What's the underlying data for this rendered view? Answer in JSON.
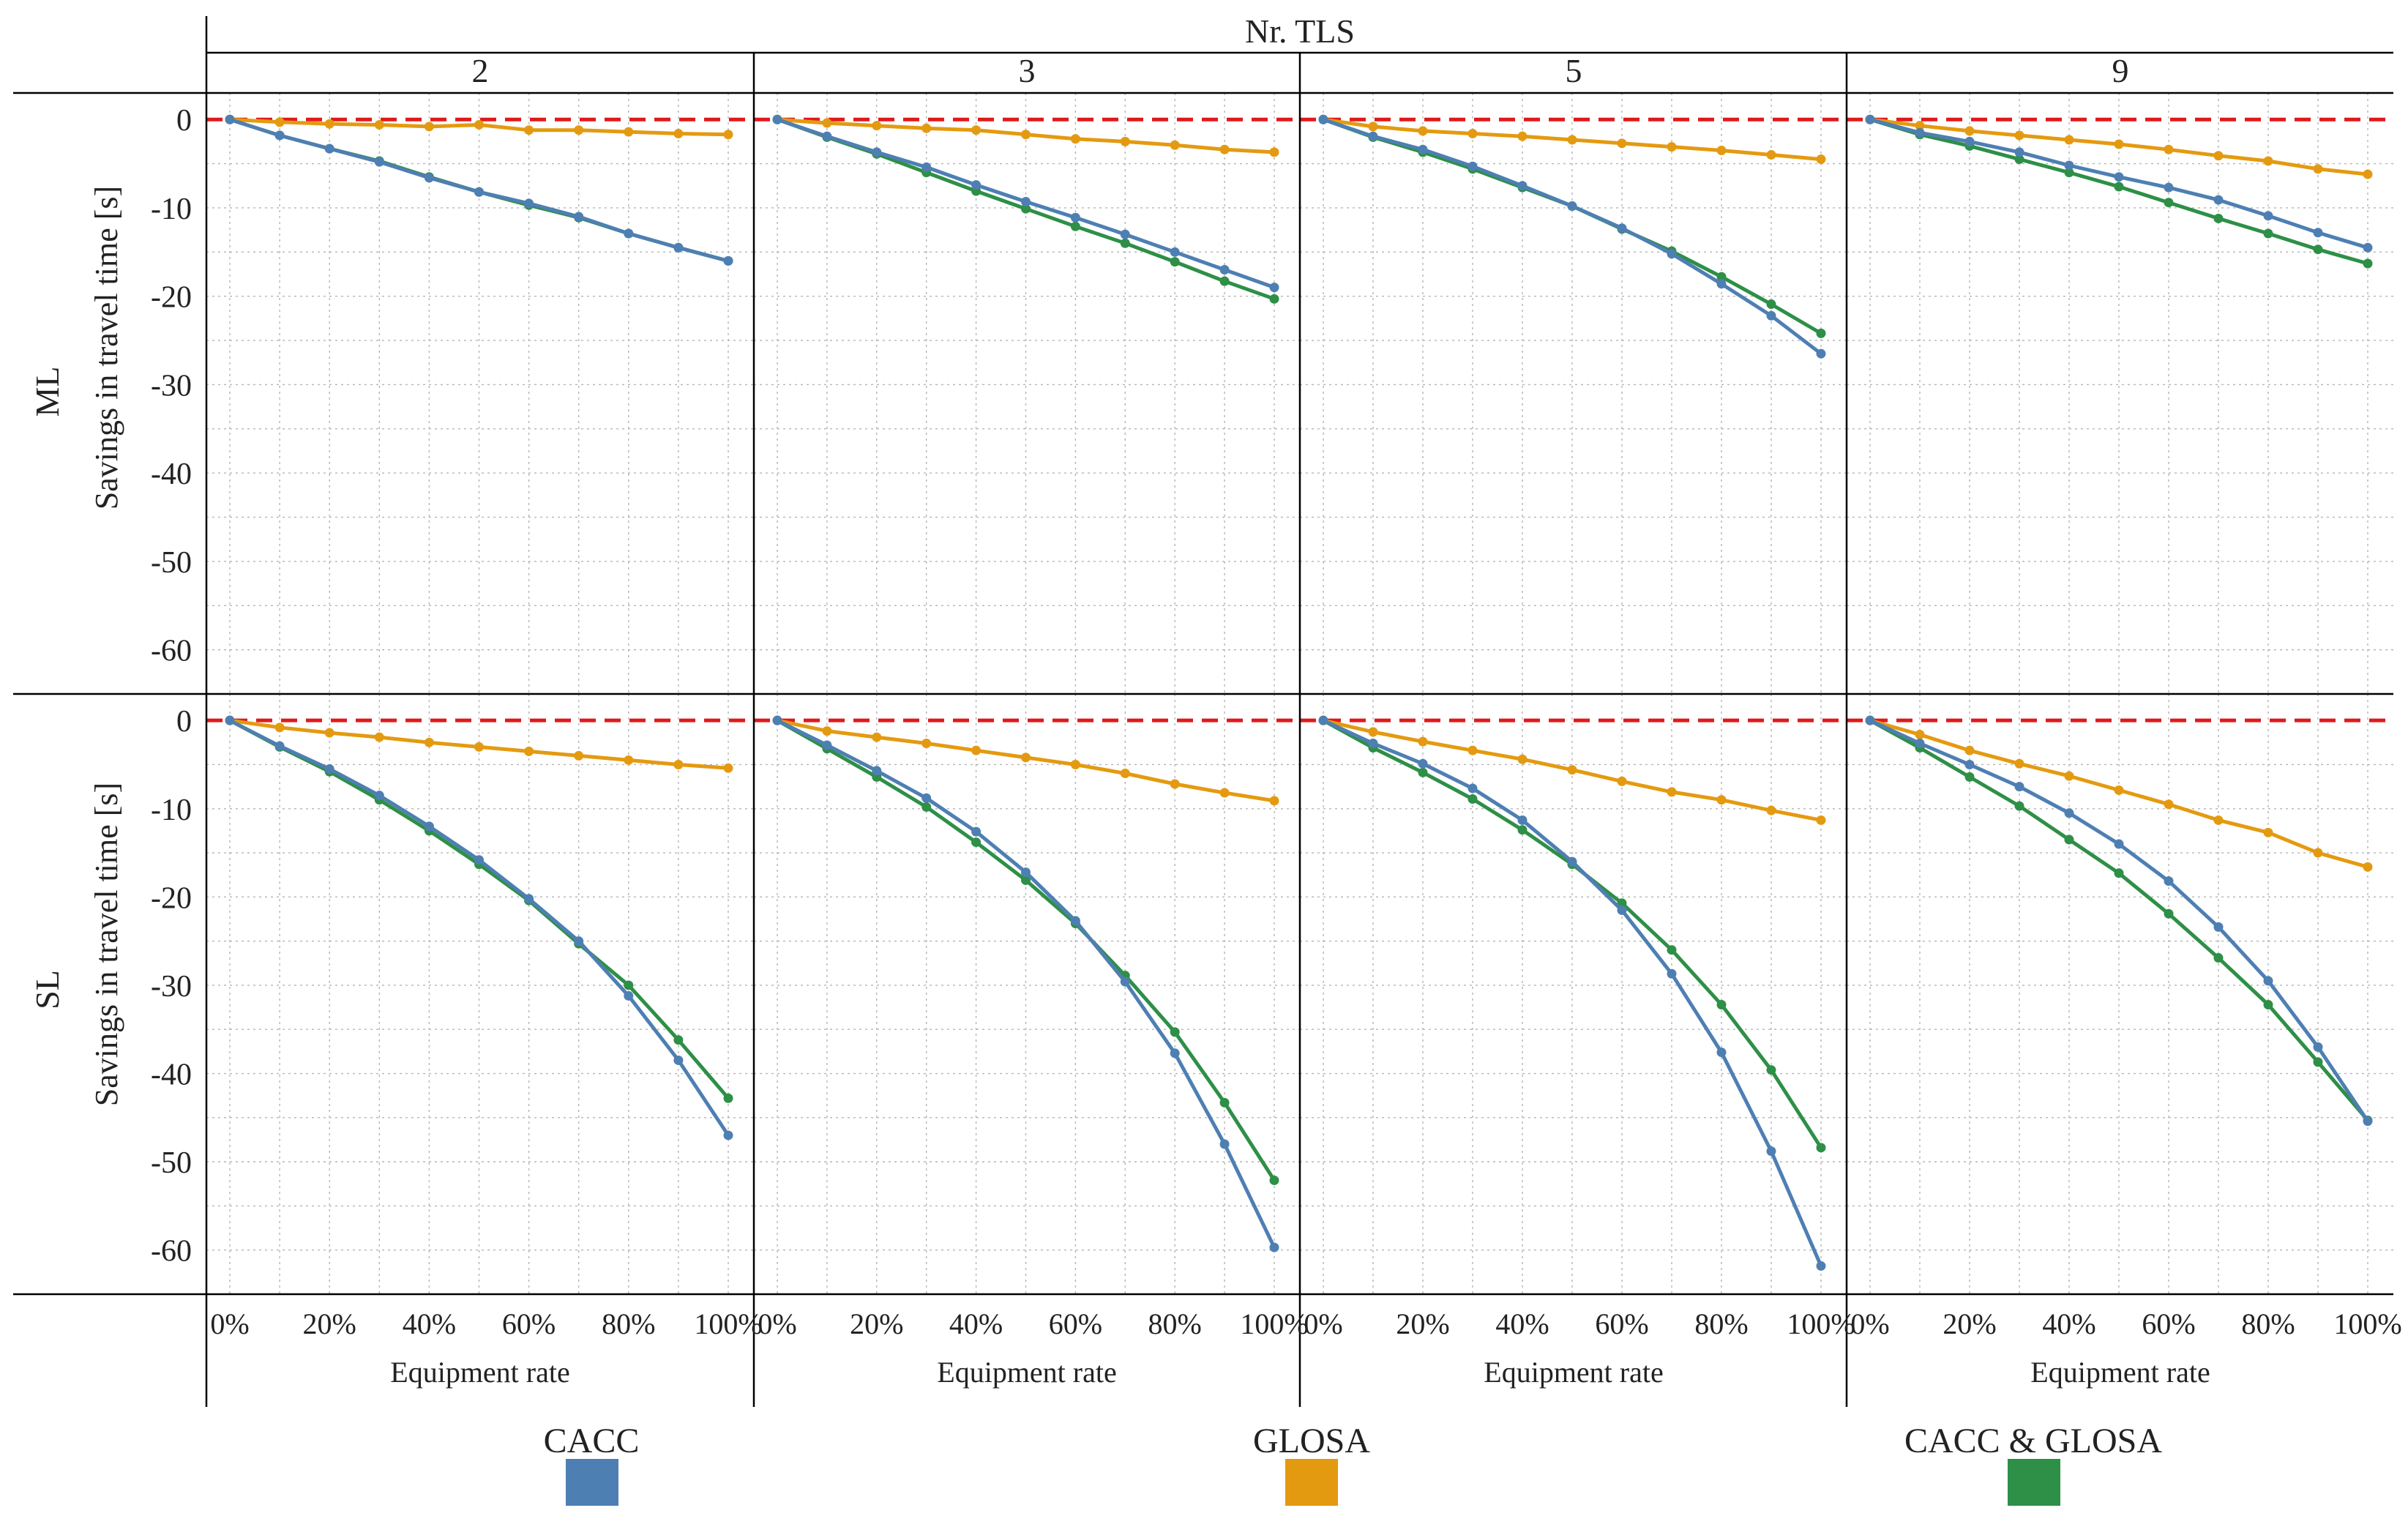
{
  "chart_data": {
    "type": "line",
    "title": "Nr. TLS",
    "column_labels": [
      "2",
      "3",
      "5",
      "9"
    ],
    "row_labels": [
      "ML",
      "SL"
    ],
    "ylabel": "Savings in travel time [s]",
    "xlabel": "Equipment rate",
    "x": [
      0,
      10,
      20,
      30,
      40,
      50,
      60,
      70,
      80,
      90,
      100
    ],
    "x_tick_labels": [
      "0%",
      "20%",
      "40%",
      "60%",
      "80%",
      "100%"
    ],
    "ylim": [
      -65,
      3
    ],
    "y_ticks": [
      0,
      -10,
      -20,
      -30,
      -40,
      -50,
      -60
    ],
    "reference_line": 0,
    "legend": [
      {
        "name": "CACC",
        "color": "#4e7fb3"
      },
      {
        "name": "GLOSA",
        "color": "#e49a10"
      },
      {
        "name": "CACC & GLOSA",
        "color": "#2e8f47"
      }
    ],
    "panels": [
      {
        "row": "ML",
        "col": "2",
        "series": [
          {
            "name": "CACC",
            "values": [
              0,
              -1.8,
              -3.3,
              -4.8,
              -6.6,
              -8.2,
              -9.5,
              -11,
              -12.9,
              -14.5,
              -16
            ]
          },
          {
            "name": "GLOSA",
            "values": [
              0,
              -0.3,
              -0.5,
              -0.6,
              -0.8,
              -0.6,
              -1.2,
              -1.2,
              -1.4,
              -1.6,
              -1.7
            ]
          },
          {
            "name": "CACC & GLOSA",
            "values": [
              0,
              -1.8,
              -3.3,
              -4.7,
              -6.5,
              -8.2,
              -9.7,
              -11.1,
              -12.9,
              -14.5,
              -16
            ]
          }
        ]
      },
      {
        "row": "ML",
        "col": "3",
        "series": [
          {
            "name": "CACC",
            "values": [
              0,
              -1.9,
              -3.7,
              -5.4,
              -7.4,
              -9.3,
              -11.1,
              -13,
              -15,
              -17,
              -19
            ]
          },
          {
            "name": "GLOSA",
            "values": [
              0,
              -0.4,
              -0.7,
              -1,
              -1.2,
              -1.7,
              -2.2,
              -2.5,
              -2.9,
              -3.4,
              -3.7
            ]
          },
          {
            "name": "CACC & GLOSA",
            "values": [
              0,
              -2,
              -3.9,
              -6,
              -8.1,
              -10.1,
              -12.1,
              -14,
              -16.1,
              -18.3,
              -20.3
            ]
          }
        ]
      },
      {
        "row": "ML",
        "col": "5",
        "series": [
          {
            "name": "CACC",
            "values": [
              0,
              -1.9,
              -3.4,
              -5.3,
              -7.5,
              -9.8,
              -12.3,
              -15.2,
              -18.6,
              -22.2,
              -26.5
            ]
          },
          {
            "name": "GLOSA",
            "values": [
              0,
              -0.8,
              -1.3,
              -1.6,
              -1.9,
              -2.3,
              -2.7,
              -3.1,
              -3.5,
              -4,
              -4.5
            ]
          },
          {
            "name": "CACC & GLOSA",
            "values": [
              0,
              -2,
              -3.7,
              -5.6,
              -7.7,
              -9.8,
              -12.4,
              -14.9,
              -17.8,
              -20.9,
              -24.2
            ]
          }
        ]
      },
      {
        "row": "ML",
        "col": "9",
        "series": [
          {
            "name": "CACC",
            "values": [
              0,
              -1.5,
              -2.5,
              -3.7,
              -5.2,
              -6.5,
              -7.7,
              -9.1,
              -10.9,
              -12.8,
              -14.5
            ]
          },
          {
            "name": "GLOSA",
            "values": [
              0,
              -0.7,
              -1.3,
              -1.8,
              -2.3,
              -2.8,
              -3.4,
              -4.1,
              -4.7,
              -5.6,
              -6.2
            ]
          },
          {
            "name": "CACC & GLOSA",
            "values": [
              0,
              -1.7,
              -3,
              -4.5,
              -6,
              -7.6,
              -9.4,
              -11.2,
              -12.9,
              -14.7,
              -16.3
            ]
          }
        ]
      },
      {
        "row": "SL",
        "col": "2",
        "series": [
          {
            "name": "CACC",
            "values": [
              0,
              -2.9,
              -5.5,
              -8.5,
              -12,
              -15.8,
              -20.2,
              -25,
              -31.2,
              -38.5,
              -47
            ]
          },
          {
            "name": "GLOSA",
            "values": [
              0,
              -0.8,
              -1.4,
              -1.9,
              -2.5,
              -3,
              -3.5,
              -4,
              -4.5,
              -5,
              -5.4
            ]
          },
          {
            "name": "CACC & GLOSA",
            "values": [
              0,
              -3,
              -5.8,
              -9,
              -12.5,
              -16.3,
              -20.4,
              -25.3,
              -30,
              -36.2,
              -42.8
            ]
          }
        ]
      },
      {
        "row": "SL",
        "col": "3",
        "series": [
          {
            "name": "CACC",
            "values": [
              0,
              -2.8,
              -5.7,
              -8.8,
              -12.6,
              -17.2,
              -22.7,
              -29.6,
              -37.7,
              -48,
              -59.7
            ]
          },
          {
            "name": "GLOSA",
            "values": [
              0,
              -1.2,
              -1.9,
              -2.6,
              -3.4,
              -4.2,
              -5,
              -6,
              -7.2,
              -8.2,
              -9.1
            ]
          },
          {
            "name": "CACC & GLOSA",
            "values": [
              0,
              -3.2,
              -6.4,
              -9.8,
              -13.8,
              -18.1,
              -23,
              -28.9,
              -35.3,
              -43.3,
              -52.1
            ]
          }
        ]
      },
      {
        "row": "SL",
        "col": "5",
        "series": [
          {
            "name": "CACC",
            "values": [
              0,
              -2.6,
              -4.9,
              -7.7,
              -11.3,
              -16,
              -21.5,
              -28.7,
              -37.6,
              -48.8,
              -61.8
            ]
          },
          {
            "name": "GLOSA",
            "values": [
              0,
              -1.3,
              -2.4,
              -3.4,
              -4.4,
              -5.6,
              -6.9,
              -8.1,
              -9,
              -10.2,
              -11.3
            ]
          },
          {
            "name": "CACC & GLOSA",
            "values": [
              0,
              -3.1,
              -5.9,
              -8.9,
              -12.4,
              -16.3,
              -20.7,
              -26,
              -32.2,
              -39.6,
              -48.4
            ]
          }
        ]
      },
      {
        "row": "SL",
        "col": "9",
        "series": [
          {
            "name": "CACC",
            "values": [
              0,
              -2.6,
              -5,
              -7.5,
              -10.5,
              -14,
              -18.2,
              -23.4,
              -29.5,
              -37,
              -45.4
            ]
          },
          {
            "name": "GLOSA",
            "values": [
              0,
              -1.6,
              -3.4,
              -4.9,
              -6.3,
              -7.9,
              -9.5,
              -11.3,
              -12.7,
              -15,
              -16.6
            ]
          },
          {
            "name": "CACC & GLOSA",
            "values": [
              0,
              -3.1,
              -6.4,
              -9.7,
              -13.5,
              -17.3,
              -21.9,
              -26.9,
              -32.2,
              -38.7,
              -45.3
            ]
          }
        ]
      }
    ]
  }
}
